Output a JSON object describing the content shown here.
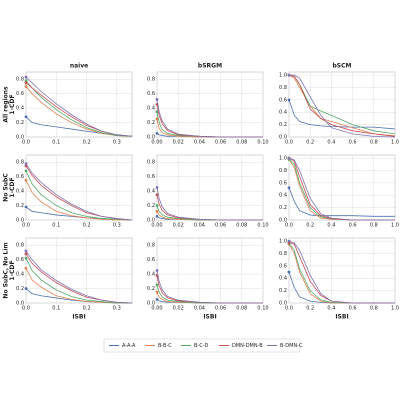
{
  "chart_data": [
    {
      "type": "line",
      "title": "naive",
      "ylabel": [
        "All regions",
        "1-CDF"
      ],
      "x": [
        0,
        0.02,
        0.05,
        0.1,
        0.15,
        0.2,
        0.25,
        0.3,
        0.35
      ],
      "xlim": [
        0,
        0.35
      ],
      "ylim": [
        0,
        0.9
      ],
      "xticks": [
        {
          "value": 0,
          "label": "0.0"
        },
        0.1,
        0.2,
        0.3
      ],
      "yticks": [
        {
          "value": 0,
          "label": "0.0"
        },
        0.2,
        0.4,
        0.6,
        0.8
      ],
      "grid": true,
      "series": [
        {
          "name": "A-A-A",
          "color": "#4c72b0",
          "values": [
            0.28,
            0.2,
            0.17,
            0.14,
            0.11,
            0.08,
            0.05,
            0.03,
            0.01
          ]
        },
        {
          "name": "B-B-C",
          "color": "#dd8452",
          "values": [
            0.7,
            0.6,
            0.48,
            0.32,
            0.2,
            0.11,
            0.05,
            0.02,
            0.01
          ]
        },
        {
          "name": "B-C-D",
          "color": "#55a868",
          "values": [
            0.78,
            0.68,
            0.55,
            0.38,
            0.24,
            0.13,
            0.06,
            0.02,
            0.01
          ]
        },
        {
          "name": "DMN-DMN-B",
          "color": "#c44e52",
          "values": [
            0.75,
            0.68,
            0.58,
            0.42,
            0.28,
            0.16,
            0.08,
            0.03,
            0.01
          ]
        },
        {
          "name": "B-DMN-C",
          "color": "#8172b3",
          "values": [
            0.83,
            0.75,
            0.63,
            0.46,
            0.31,
            0.18,
            0.08,
            0.03,
            0.01
          ]
        }
      ]
    },
    {
      "type": "line",
      "title": "bSRGM",
      "x": [
        0,
        0.002,
        0.005,
        0.01,
        0.02,
        0.04,
        0.06,
        0.1
      ],
      "xlim": [
        0,
        0.1
      ],
      "ylim": [
        0,
        0.9
      ],
      "xticks": [
        {
          "value": 0,
          "label": "0.00"
        },
        0.02,
        0.04,
        0.06,
        0.08,
        {
          "value": 0.1,
          "label": "0.10"
        }
      ],
      "yticks": [
        {
          "value": 0,
          "label": "0.0"
        },
        0.2,
        0.4,
        0.6,
        0.8
      ],
      "grid": true,
      "series": [
        {
          "name": "A-A-A",
          "color": "#4c72b0",
          "values": [
            0.05,
            0.03,
            0.02,
            0.01,
            0.01,
            0,
            0,
            0
          ]
        },
        {
          "name": "B-B-C",
          "color": "#dd8452",
          "values": [
            0.25,
            0.12,
            0.06,
            0.03,
            0.01,
            0,
            0,
            0
          ]
        },
        {
          "name": "B-C-D",
          "color": "#55a868",
          "values": [
            0.35,
            0.2,
            0.1,
            0.05,
            0.02,
            0.01,
            0,
            0
          ]
        },
        {
          "name": "DMN-DMN-B",
          "color": "#c44e52",
          "values": [
            0.45,
            0.3,
            0.18,
            0.09,
            0.03,
            0.01,
            0,
            0
          ]
        },
        {
          "name": "B-DMN-C",
          "color": "#8172b3",
          "values": [
            0.52,
            0.35,
            0.22,
            0.11,
            0.04,
            0.01,
            0,
            0
          ]
        }
      ]
    },
    {
      "type": "line",
      "title": "bSCM",
      "x": [
        0,
        0.05,
        0.1,
        0.2,
        0.3,
        0.4,
        0.6,
        0.8,
        1
      ],
      "xlim": [
        0,
        1
      ],
      "ylim": [
        0,
        1.05
      ],
      "xticks": [
        {
          "value": 0,
          "label": "0.0"
        },
        0.2,
        0.4,
        0.6,
        0.8,
        {
          "value": 1,
          "label": "1.0"
        }
      ],
      "yticks": [
        {
          "value": 0,
          "label": "0.0"
        },
        0.2,
        0.4,
        0.6,
        0.8,
        {
          "value": 1,
          "label": "1.0"
        }
      ],
      "grid": true,
      "series": [
        {
          "name": "A-A-A",
          "color": "#4c72b0",
          "values": [
            0.6,
            0.35,
            0.25,
            0.2,
            0.18,
            0.17,
            0.16,
            0.16,
            0.13
          ]
        },
        {
          "name": "B-B-C",
          "color": "#dd8452",
          "values": [
            1,
            0.95,
            0.8,
            0.5,
            0.3,
            0.25,
            0.15,
            0.05,
            0.02
          ]
        },
        {
          "name": "B-C-D",
          "color": "#55a868",
          "values": [
            1,
            0.98,
            0.85,
            0.5,
            0.42,
            0.35,
            0.2,
            0.1,
            0.05
          ]
        },
        {
          "name": "DMN-DMN-B",
          "color": "#c44e52",
          "values": [
            1,
            0.98,
            0.85,
            0.45,
            0.3,
            0.2,
            0.1,
            0.05,
            0.01
          ]
        },
        {
          "name": "B-DMN-C",
          "color": "#8172b3",
          "values": [
            1,
            1,
            0.95,
            0.65,
            0.35,
            0.15,
            0.05,
            0.01,
            0
          ]
        }
      ]
    },
    {
      "type": "line",
      "ylabel": [
        "No SubC",
        "1-CDF"
      ],
      "x": [
        0,
        0.02,
        0.05,
        0.1,
        0.15,
        0.2,
        0.25,
        0.3,
        0.35
      ],
      "xlim": [
        0,
        0.35
      ],
      "ylim": [
        0,
        0.9
      ],
      "xticks": [
        {
          "value": 0,
          "label": "0.0"
        },
        0.1,
        0.2,
        0.3
      ],
      "yticks": [
        {
          "value": 0,
          "label": "0.0"
        },
        0.2,
        0.4,
        0.6,
        0.8
      ],
      "grid": true,
      "series": [
        {
          "name": "A-A-A",
          "color": "#4c72b0",
          "values": [
            0.18,
            0.12,
            0.1,
            0.07,
            0.05,
            0.03,
            0.02,
            0.01,
            0
          ]
        },
        {
          "name": "B-B-C",
          "color": "#dd8452",
          "values": [
            0.55,
            0.38,
            0.25,
            0.12,
            0.06,
            0.03,
            0.01,
            0,
            0
          ]
        },
        {
          "name": "B-C-D",
          "color": "#55a868",
          "values": [
            0.68,
            0.5,
            0.35,
            0.2,
            0.1,
            0.05,
            0.02,
            0.01,
            0
          ]
        },
        {
          "name": "DMN-DMN-B",
          "color": "#c44e52",
          "values": [
            0.75,
            0.62,
            0.48,
            0.32,
            0.2,
            0.1,
            0.05,
            0.02,
            0
          ]
        },
        {
          "name": "B-DMN-C",
          "color": "#8172b3",
          "values": [
            0.78,
            0.65,
            0.52,
            0.35,
            0.22,
            0.12,
            0.05,
            0.02,
            0
          ]
        }
      ]
    },
    {
      "type": "line",
      "x": [
        0,
        0.002,
        0.005,
        0.01,
        0.02,
        0.04,
        0.06,
        0.1
      ],
      "xlim": [
        0,
        0.1
      ],
      "ylim": [
        0,
        0.9
      ],
      "xticks": [
        {
          "value": 0,
          "label": "0.00"
        },
        0.02,
        0.04,
        0.06,
        0.08,
        {
          "value": 0.1,
          "label": "0.10"
        }
      ],
      "yticks": [
        {
          "value": 0,
          "label": "0.0"
        },
        0.2,
        0.4,
        0.6,
        0.8
      ],
      "grid": true,
      "series": [
        {
          "name": "A-A-A",
          "color": "#4c72b0",
          "values": [
            0.05,
            0.03,
            0.02,
            0.01,
            0.01,
            0,
            0,
            0
          ]
        },
        {
          "name": "B-B-C",
          "color": "#dd8452",
          "values": [
            0.12,
            0.07,
            0.04,
            0.02,
            0.01,
            0,
            0,
            0
          ]
        },
        {
          "name": "B-C-D",
          "color": "#55a868",
          "values": [
            0.2,
            0.12,
            0.07,
            0.04,
            0.02,
            0,
            0,
            0
          ]
        },
        {
          "name": "DMN-DMN-B",
          "color": "#c44e52",
          "values": [
            0.35,
            0.22,
            0.13,
            0.07,
            0.03,
            0.01,
            0,
            0
          ]
        },
        {
          "name": "B-DMN-C",
          "color": "#8172b3",
          "values": [
            0.45,
            0.3,
            0.18,
            0.09,
            0.04,
            0.01,
            0,
            0
          ]
        }
      ]
    },
    {
      "type": "line",
      "x": [
        0,
        0.05,
        0.1,
        0.2,
        0.3,
        0.4,
        0.6,
        0.8,
        1
      ],
      "xlim": [
        0,
        1
      ],
      "ylim": [
        0,
        1.05
      ],
      "xticks": [
        {
          "value": 0,
          "label": "0.0"
        },
        0.2,
        0.4,
        0.6,
        0.8,
        {
          "value": 1,
          "label": "1.0"
        }
      ],
      "yticks": [
        {
          "value": 0,
          "label": "0.0"
        },
        0.2,
        0.4,
        0.6,
        0.8,
        {
          "value": 1,
          "label": "1.0"
        }
      ],
      "grid": true,
      "series": [
        {
          "name": "A-A-A",
          "color": "#4c72b0",
          "values": [
            0.52,
            0.3,
            0.15,
            0.08,
            0.07,
            0.07,
            0.07,
            0.06,
            0.06
          ]
        },
        {
          "name": "B-B-C",
          "color": "#dd8452",
          "values": [
            0.98,
            0.85,
            0.55,
            0.15,
            0.03,
            0.01,
            0,
            0,
            0
          ]
        },
        {
          "name": "B-C-D",
          "color": "#55a868",
          "values": [
            0.98,
            0.9,
            0.6,
            0.2,
            0.05,
            0.02,
            0,
            0,
            0
          ]
        },
        {
          "name": "DMN-DMN-B",
          "color": "#c44e52",
          "values": [
            1,
            0.95,
            0.7,
            0.25,
            0.07,
            0.02,
            0,
            0,
            0
          ]
        },
        {
          "name": "B-DMN-C",
          "color": "#8172b3",
          "values": [
            1,
            0.97,
            0.8,
            0.35,
            0.1,
            0.03,
            0,
            0,
            0
          ]
        }
      ]
    },
    {
      "type": "line",
      "ylabel": [
        "No SubC, No Lim",
        "1-CDF"
      ],
      "xlabel": "ISBI",
      "x": [
        0,
        0.02,
        0.05,
        0.1,
        0.15,
        0.2,
        0.25,
        0.3,
        0.35
      ],
      "xlim": [
        0,
        0.35
      ],
      "ylim": [
        0,
        0.9
      ],
      "xticks": [
        {
          "value": 0,
          "label": "0.0"
        },
        0.1,
        0.2,
        0.3
      ],
      "yticks": [
        {
          "value": 0,
          "label": "0.0"
        },
        0.2,
        0.4,
        0.6,
        0.8
      ],
      "grid": true,
      "series": [
        {
          "name": "A-A-A",
          "color": "#4c72b0",
          "values": [
            0.2,
            0.13,
            0.1,
            0.07,
            0.04,
            0.02,
            0.01,
            0,
            0
          ]
        },
        {
          "name": "B-B-C",
          "color": "#dd8452",
          "values": [
            0.48,
            0.32,
            0.22,
            0.1,
            0.05,
            0.02,
            0.01,
            0,
            0
          ]
        },
        {
          "name": "B-C-D",
          "color": "#55a868",
          "values": [
            0.62,
            0.45,
            0.32,
            0.18,
            0.09,
            0.04,
            0.02,
            0,
            0
          ]
        },
        {
          "name": "DMN-DMN-B",
          "color": "#c44e52",
          "values": [
            0.68,
            0.55,
            0.43,
            0.28,
            0.17,
            0.08,
            0.04,
            0.01,
            0
          ]
        },
        {
          "name": "B-DMN-C",
          "color": "#8172b3",
          "values": [
            0.72,
            0.6,
            0.46,
            0.31,
            0.19,
            0.1,
            0.04,
            0.01,
            0
          ]
        }
      ]
    },
    {
      "type": "line",
      "xlabel": "ISBI",
      "x": [
        0,
        0.002,
        0.005,
        0.01,
        0.02,
        0.04,
        0.06,
        0.1
      ],
      "xlim": [
        0,
        0.1
      ],
      "ylim": [
        0,
        0.9
      ],
      "xticks": [
        {
          "value": 0,
          "label": "0.00"
        },
        0.02,
        0.04,
        0.06,
        0.08,
        {
          "value": 0.1,
          "label": "0.10"
        }
      ],
      "yticks": [
        {
          "value": 0,
          "label": "0.0"
        },
        0.2,
        0.4,
        0.6,
        0.8
      ],
      "grid": true,
      "series": [
        {
          "name": "A-A-A",
          "color": "#4c72b0",
          "values": [
            0.05,
            0.03,
            0.02,
            0.01,
            0.01,
            0,
            0,
            0
          ]
        },
        {
          "name": "B-B-C",
          "color": "#dd8452",
          "values": [
            0.15,
            0.08,
            0.05,
            0.02,
            0.01,
            0,
            0,
            0
          ]
        },
        {
          "name": "B-C-D",
          "color": "#55a868",
          "values": [
            0.25,
            0.15,
            0.08,
            0.04,
            0.02,
            0,
            0,
            0
          ]
        },
        {
          "name": "DMN-DMN-B",
          "color": "#c44e52",
          "values": [
            0.38,
            0.24,
            0.14,
            0.07,
            0.03,
            0.01,
            0,
            0
          ]
        },
        {
          "name": "B-DMN-C",
          "color": "#8172b3",
          "values": [
            0.45,
            0.3,
            0.18,
            0.09,
            0.04,
            0.01,
            0,
            0
          ]
        }
      ]
    },
    {
      "type": "line",
      "xlabel": "ISBI",
      "x": [
        0,
        0.05,
        0.1,
        0.2,
        0.3,
        0.4,
        0.6,
        0.8,
        1
      ],
      "xlim": [
        0,
        1
      ],
      "ylim": [
        0,
        1.05
      ],
      "xticks": [
        {
          "value": 0,
          "label": "0.0"
        },
        0.2,
        0.4,
        0.6,
        0.8,
        {
          "value": 1,
          "label": "1.0"
        }
      ],
      "yticks": [
        {
          "value": 0,
          "label": "0.0"
        },
        0.2,
        0.4,
        0.6,
        0.8,
        {
          "value": 1,
          "label": "1.0"
        }
      ],
      "grid": true,
      "series": [
        {
          "name": "A-A-A",
          "color": "#4c72b0",
          "values": [
            0.5,
            0.25,
            0.1,
            0.03,
            0.01,
            0,
            0,
            0,
            0
          ]
        },
        {
          "name": "B-B-C",
          "color": "#dd8452",
          "values": [
            0.95,
            0.8,
            0.5,
            0.15,
            0.03,
            0,
            0,
            0,
            0
          ]
        },
        {
          "name": "B-C-D",
          "color": "#55a868",
          "values": [
            0.97,
            0.85,
            0.55,
            0.2,
            0.05,
            0.01,
            0,
            0,
            0
          ]
        },
        {
          "name": "DMN-DMN-B",
          "color": "#c44e52",
          "values": [
            0.98,
            0.95,
            0.75,
            0.35,
            0.12,
            0.03,
            0,
            0,
            0
          ]
        },
        {
          "name": "B-DMN-C",
          "color": "#8172b3",
          "values": [
            1,
            0.97,
            0.85,
            0.45,
            0.15,
            0.03,
            0,
            0,
            0
          ]
        }
      ]
    }
  ]
}
